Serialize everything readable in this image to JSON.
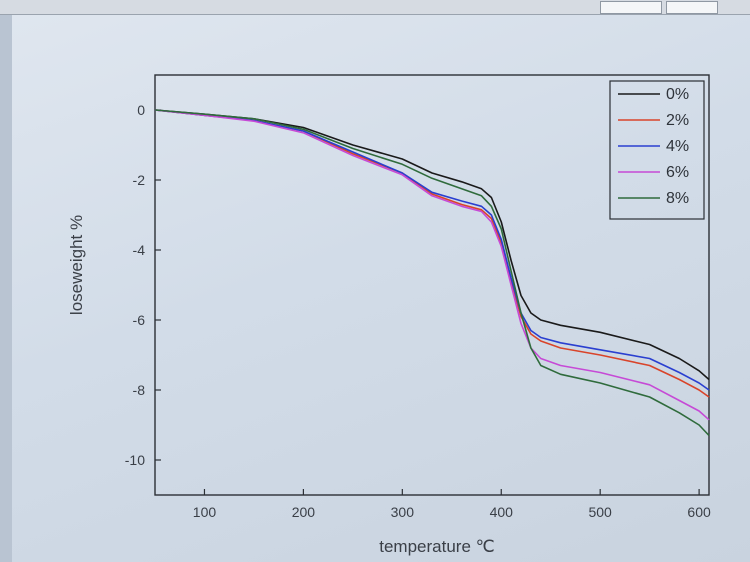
{
  "chart_data": {
    "type": "line",
    "title": "",
    "xlabel": "temperature ℃",
    "ylabel": "loseweight %",
    "xlim": [
      50,
      610
    ],
    "ylim": [
      -11,
      1
    ],
    "xticks": [
      100,
      200,
      300,
      400,
      500,
      600
    ],
    "yticks": [
      0,
      -2,
      -4,
      -6,
      -8,
      -10
    ],
    "grid": false,
    "legend": "top-right",
    "x": [
      50,
      100,
      150,
      200,
      250,
      300,
      330,
      360,
      380,
      390,
      400,
      410,
      420,
      430,
      440,
      460,
      500,
      550,
      580,
      600,
      610
    ],
    "series": [
      {
        "name": "0%",
        "color": "#1a1a1a",
        "values": [
          0,
          -0.12,
          -0.25,
          -0.5,
          -1.0,
          -1.4,
          -1.8,
          -2.05,
          -2.25,
          -2.5,
          -3.2,
          -4.3,
          -5.3,
          -5.8,
          -6.0,
          -6.15,
          -6.35,
          -6.7,
          -7.1,
          -7.45,
          -7.7
        ]
      },
      {
        "name": "2%",
        "color": "#d9442a",
        "values": [
          0,
          -0.15,
          -0.3,
          -0.6,
          -1.25,
          -1.8,
          -2.4,
          -2.7,
          -2.85,
          -3.1,
          -3.8,
          -4.9,
          -5.9,
          -6.4,
          -6.6,
          -6.8,
          -7.0,
          -7.3,
          -7.7,
          -8.0,
          -8.2
        ]
      },
      {
        "name": "4%",
        "color": "#2a3fd0",
        "values": [
          0,
          -0.15,
          -0.3,
          -0.6,
          -1.2,
          -1.8,
          -2.35,
          -2.6,
          -2.75,
          -3.0,
          -3.7,
          -4.8,
          -5.8,
          -6.3,
          -6.5,
          -6.65,
          -6.85,
          -7.1,
          -7.5,
          -7.8,
          -8.0
        ]
      },
      {
        "name": "6%",
        "color": "#c64ad6",
        "values": [
          0,
          -0.15,
          -0.32,
          -0.65,
          -1.3,
          -1.85,
          -2.45,
          -2.75,
          -2.9,
          -3.2,
          -3.9,
          -5.0,
          -6.1,
          -6.8,
          -7.1,
          -7.3,
          -7.5,
          -7.85,
          -8.3,
          -8.6,
          -8.85
        ]
      },
      {
        "name": "8%",
        "color": "#2f6b3c",
        "values": [
          0,
          -0.12,
          -0.25,
          -0.55,
          -1.1,
          -1.55,
          -1.95,
          -2.25,
          -2.45,
          -2.75,
          -3.4,
          -4.6,
          -5.8,
          -6.8,
          -7.3,
          -7.55,
          -7.8,
          -8.2,
          -8.65,
          -9.0,
          -9.3
        ]
      }
    ]
  }
}
